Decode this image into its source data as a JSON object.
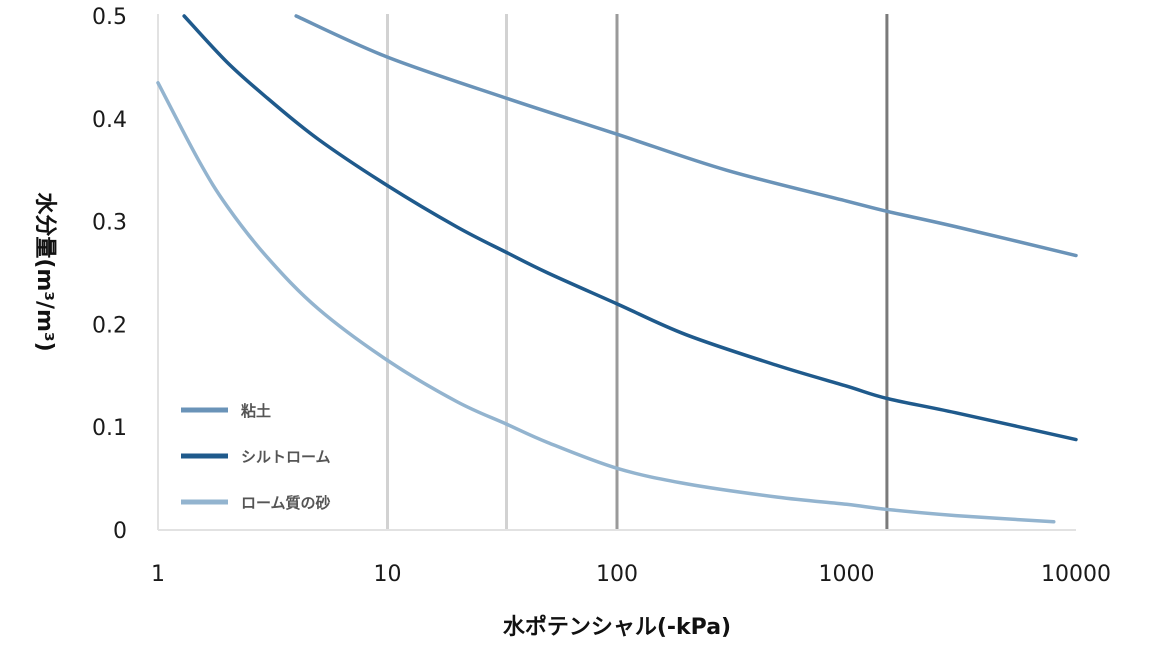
{
  "chart_data": {
    "type": "line",
    "title": "",
    "xlabel": "水ポテンシャル(-kPa)",
    "ylabel": "水分量(m³/m³)",
    "x_scale": "log",
    "xlim": [
      1,
      10000
    ],
    "ylim": [
      0,
      0.5
    ],
    "x_ticks": [
      1,
      10,
      100,
      1000,
      10000
    ],
    "x_tick_labels": [
      "1",
      "10",
      "100",
      "1000",
      "10000"
    ],
    "y_ticks": [
      0,
      0.1,
      0.2,
      0.3,
      0.4,
      0.5
    ],
    "y_tick_labels": [
      "0",
      "0.1",
      "0.2",
      "0.3",
      "0.4",
      "0.5"
    ],
    "reference_lines": [
      {
        "x": 10,
        "color": "#d2d2d2"
      },
      {
        "x": 33,
        "color": "#d2d2d2"
      },
      {
        "x": 100,
        "color": "#9a9a9a"
      },
      {
        "x": 1500,
        "color": "#7a7a7a"
      }
    ],
    "legend_position": "bottom-left",
    "series": [
      {
        "name": "粘土",
        "color": "#6a93b8",
        "x": [
          4,
          10,
          33,
          100,
          300,
          1000,
          1500,
          3000,
          10000
        ],
        "y": [
          0.5,
          0.46,
          0.42,
          0.385,
          0.35,
          0.32,
          0.31,
          0.295,
          0.267
        ]
      },
      {
        "name": "シルトローム",
        "color": "#1f5a8c",
        "x": [
          1.3,
          2,
          3,
          5,
          10,
          20,
          33,
          50,
          100,
          200,
          500,
          1000,
          1500,
          3000,
          10000
        ],
        "y": [
          0.5,
          0.455,
          0.42,
          0.38,
          0.335,
          0.295,
          0.27,
          0.25,
          0.22,
          0.19,
          0.16,
          0.14,
          0.128,
          0.114,
          0.088
        ]
      },
      {
        "name": "ローム質の砂",
        "color": "#93b4cf",
        "x": [
          1,
          1.5,
          2,
          3,
          5,
          10,
          20,
          33,
          50,
          100,
          200,
          500,
          1000,
          1500,
          3000,
          8000
        ],
        "y": [
          0.435,
          0.36,
          0.315,
          0.265,
          0.215,
          0.165,
          0.125,
          0.103,
          0.085,
          0.06,
          0.045,
          0.032,
          0.025,
          0.02,
          0.014,
          0.008
        ]
      }
    ]
  }
}
